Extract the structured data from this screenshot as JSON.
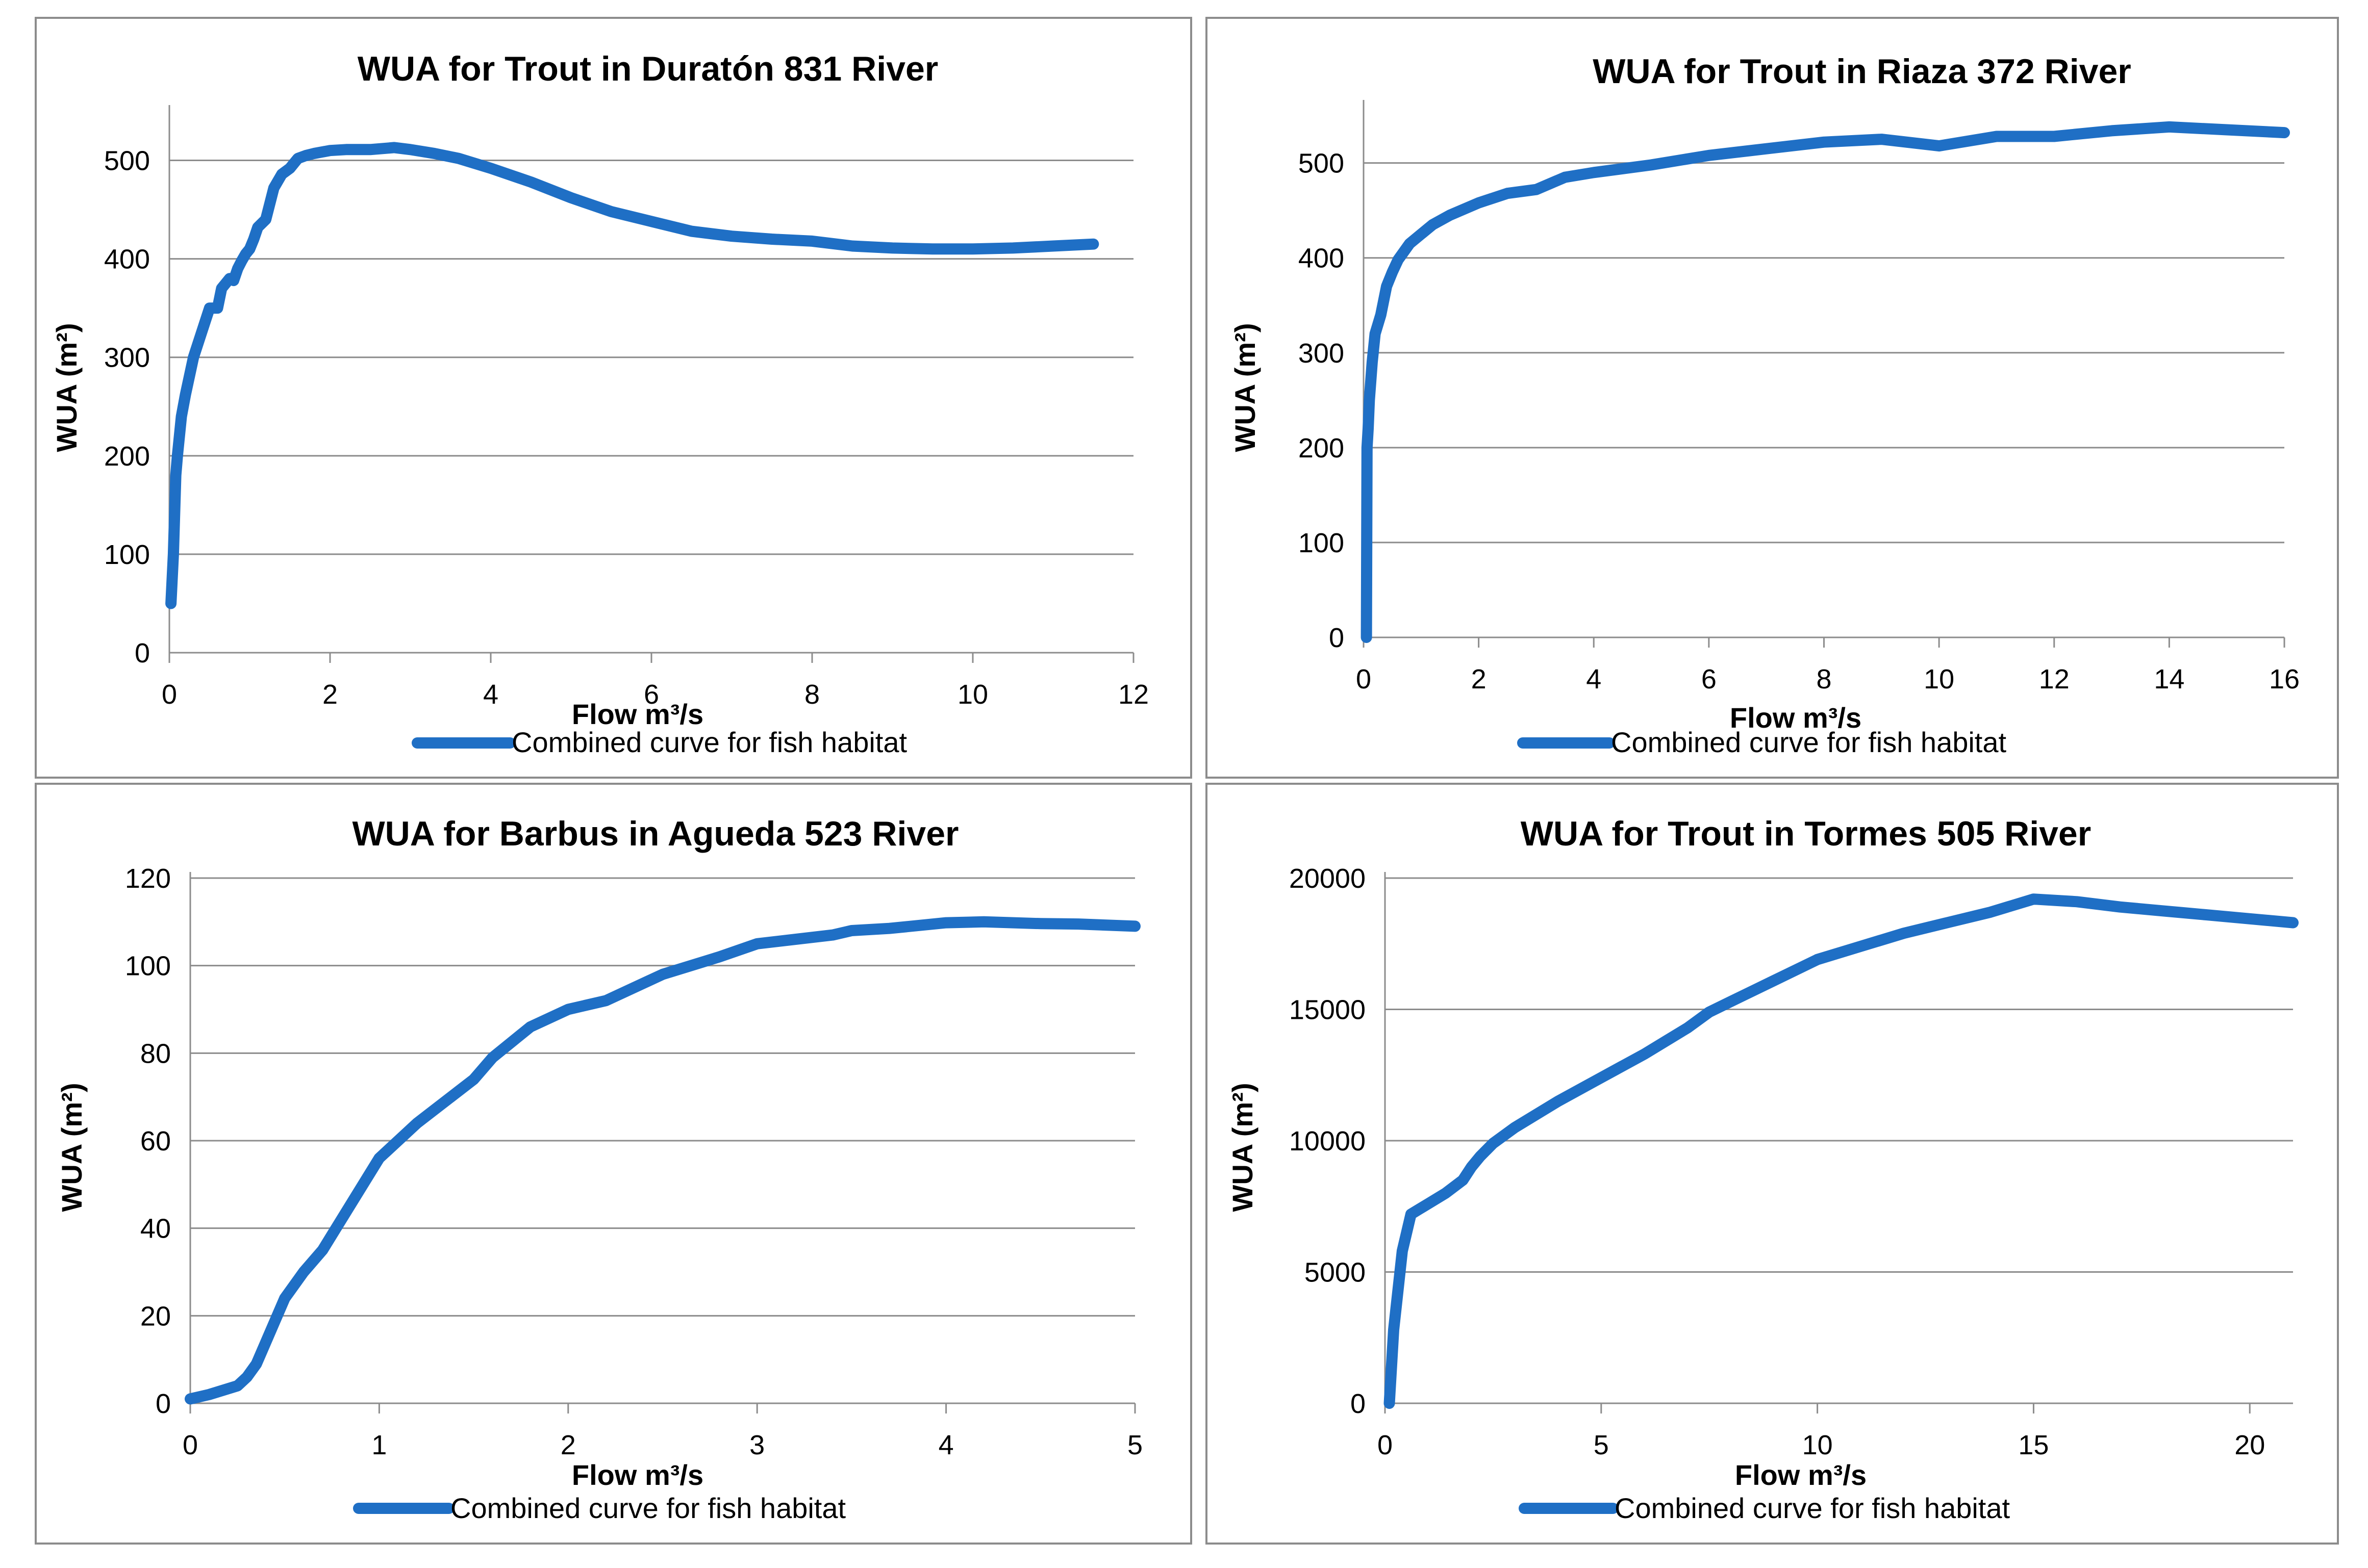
{
  "chart_data": [
    {
      "type": "line",
      "title": "WUA for Trout in Duratón 831 River",
      "xlabel": "Flow m³/s",
      "ylabel": "WUA  (m²)",
      "xlim": [
        0,
        12
      ],
      "ylim": [
        0,
        550
      ],
      "x_ticks": [
        "0",
        "2",
        "4",
        "6",
        "8",
        "10",
        "12"
      ],
      "y_ticks": [
        "0",
        "100",
        "200",
        "300",
        "400",
        "500"
      ],
      "grid": true,
      "legend": "bottom",
      "series": [
        {
          "name": "Combined curve for fish habitat",
          "color": "#1f6fc5",
          "x": [
            0.02,
            0.05,
            0.08,
            0.1,
            0.15,
            0.2,
            0.3,
            0.4,
            0.5,
            0.6,
            0.65,
            0.7,
            0.75,
            0.8,
            0.85,
            0.9,
            0.95,
            1.0,
            1.05,
            1.1,
            1.2,
            1.3,
            1.4,
            1.5,
            1.6,
            1.7,
            1.8,
            2.0,
            2.2,
            2.5,
            2.8,
            3.0,
            3.3,
            3.6,
            4.0,
            4.5,
            5.0,
            5.5,
            6.0,
            6.5,
            7.0,
            7.5,
            8.0,
            8.5,
            9.0,
            9.5,
            10.0,
            10.5,
            11.0,
            11.5
          ],
          "y": [
            50,
            100,
            180,
            200,
            240,
            262,
            300,
            325,
            350,
            350,
            370,
            375,
            380,
            378,
            390,
            398,
            405,
            410,
            420,
            432,
            440,
            472,
            486,
            492,
            502,
            505,
            507,
            510,
            511,
            511,
            513,
            511,
            507,
            502,
            492,
            478,
            462,
            448,
            438,
            428,
            423,
            420,
            418,
            413,
            411,
            410,
            410,
            411,
            413,
            415
          ]
        }
      ]
    },
    {
      "type": "line",
      "title": "WUA for Trout in Riaza 372 River",
      "xlabel": "Flow m³/s",
      "ylabel": "WUA  (m²)",
      "xlim": [
        0,
        16
      ],
      "ylim": [
        0,
        560
      ],
      "x_ticks": [
        "0",
        "2",
        "4",
        "6",
        "8",
        "10",
        "12",
        "14",
        "16"
      ],
      "y_ticks": [
        "0",
        "100",
        "200",
        "300",
        "400",
        "500"
      ],
      "grid": true,
      "legend": "bottom",
      "series": [
        {
          "name": "Combined curve for fish habitat",
          "color": "#1f6fc5",
          "x": [
            0.05,
            0.06,
            0.08,
            0.1,
            0.15,
            0.2,
            0.3,
            0.4,
            0.5,
            0.6,
            0.8,
            1.0,
            1.2,
            1.5,
            2.0,
            2.5,
            3.0,
            3.5,
            4.0,
            5.0,
            6.0,
            7.0,
            8.0,
            9.0,
            10.0,
            11.0,
            12.0,
            13.0,
            14.0,
            15.0,
            16.0
          ],
          "y": [
            0,
            200,
            220,
            250,
            290,
            320,
            340,
            370,
            385,
            398,
            415,
            425,
            435,
            445,
            458,
            468,
            472,
            485,
            490,
            498,
            508,
            515,
            522,
            525,
            518,
            528,
            528,
            534,
            538,
            535,
            532
          ]
        }
      ]
    },
    {
      "type": "line",
      "title": "WUA for Barbus in Agueda 523 River",
      "xlabel": "Flow m³/s",
      "ylabel": "WUA (m²)",
      "xlim": [
        0,
        5
      ],
      "ylim": [
        0,
        120
      ],
      "x_ticks": [
        "0",
        "1",
        "2",
        "3",
        "4",
        "5"
      ],
      "y_ticks": [
        "0",
        "20",
        "40",
        "60",
        "80",
        "100",
        "120"
      ],
      "grid": true,
      "legend": "bottom",
      "series": [
        {
          "name": "Combined curve for fish habitat",
          "color": "#1f6fc5",
          "x": [
            0.0,
            0.1,
            0.25,
            0.3,
            0.35,
            0.4,
            0.5,
            0.6,
            0.7,
            0.8,
            1.0,
            1.2,
            1.5,
            1.6,
            1.8,
            2.0,
            2.2,
            2.5,
            2.8,
            3.0,
            3.2,
            3.4,
            3.5,
            3.7,
            4.0,
            4.2,
            4.5,
            4.7,
            5.0
          ],
          "y": [
            1,
            2,
            4,
            6,
            9,
            14,
            24,
            30,
            35,
            42,
            56,
            64,
            74,
            79,
            86,
            90,
            92,
            98,
            102,
            105,
            106,
            107,
            108,
            108.5,
            109.8,
            110,
            109.6,
            109.5,
            109
          ]
        }
      ]
    },
    {
      "type": "line",
      "title": "WUA for Trout in Tormes 505 River",
      "xlabel": "Flow m³/s",
      "ylabel": "WUA (m²)",
      "xlim": [
        0,
        21
      ],
      "ylim": [
        0,
        20000
      ],
      "x_ticks": [
        "0",
        "5",
        "10",
        "15",
        "20"
      ],
      "y_ticks": [
        "0",
        "5000",
        "10000",
        "15000",
        "20000"
      ],
      "grid": true,
      "legend": "bottom",
      "series": [
        {
          "name": "Combined curve for fish habitat",
          "color": "#1f6fc5",
          "x": [
            0.1,
            0.2,
            0.4,
            0.6,
            0.8,
            1.0,
            1.4,
            1.8,
            2.0,
            2.2,
            2.5,
            3.0,
            4.0,
            5.0,
            6.0,
            7.0,
            7.5,
            8.0,
            9.0,
            10.0,
            11.0,
            12.0,
            13.0,
            14.0,
            15.0,
            16.0,
            17.0,
            18.0,
            19.0,
            20.0,
            21.0
          ],
          "y": [
            0,
            2800,
            5800,
            7200,
            7400,
            7600,
            8000,
            8500,
            9000,
            9400,
            9900,
            10500,
            11500,
            12400,
            13300,
            14300,
            14900,
            15300,
            16100,
            16900,
            17400,
            17900,
            18300,
            18700,
            19200,
            19100,
            18900,
            18750,
            18600,
            18450,
            18300
          ]
        }
      ]
    }
  ]
}
